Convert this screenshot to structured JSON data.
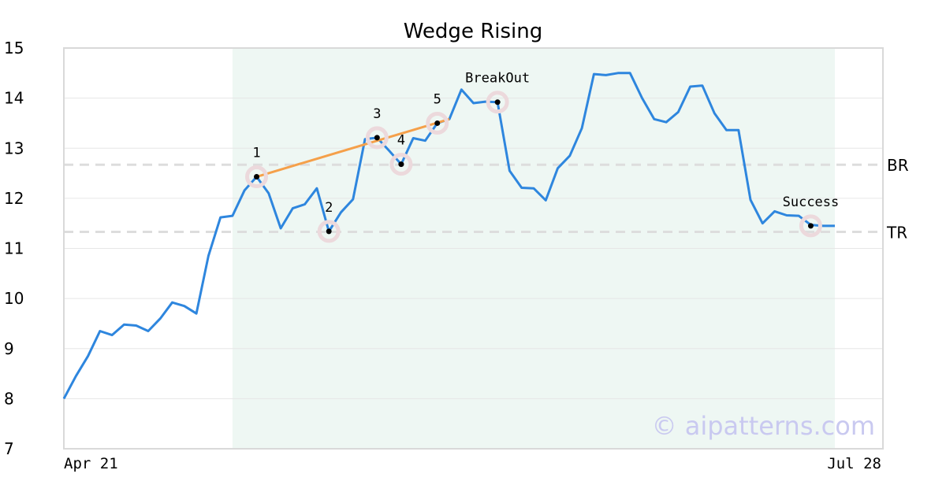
{
  "chart_data": {
    "type": "line",
    "title": "Wedge Rising",
    "xlabel": "",
    "ylabel": "",
    "ylim": [
      7,
      15
    ],
    "yticks": [
      "7",
      "8",
      "9",
      "10",
      "11",
      "12",
      "13",
      "14",
      "15"
    ],
    "x_tick_labels": [
      "Apr 21",
      "Jul 28"
    ],
    "grid": "horizontal",
    "pattern_region": {
      "start_index": 14,
      "end_index": 64
    },
    "series": [
      {
        "values": [
          8.0,
          8.45,
          8.85,
          9.35,
          9.27,
          9.48,
          9.46,
          9.35,
          9.6,
          9.92,
          9.85,
          9.7,
          10.85,
          11.62,
          11.65,
          12.16,
          12.43,
          12.1,
          11.4,
          11.8,
          11.88,
          12.2,
          11.34,
          11.72,
          11.98,
          13.18,
          13.21,
          12.95,
          12.68,
          13.2,
          13.15,
          13.5,
          13.58,
          14.17,
          13.9,
          13.93,
          13.92,
          12.55,
          12.21,
          12.2,
          11.96,
          12.6,
          12.85,
          13.4,
          14.48,
          14.46,
          14.5,
          14.5,
          14.0,
          13.58,
          13.52,
          13.72,
          14.23,
          14.25,
          13.7,
          13.36,
          13.36,
          11.97,
          11.5,
          11.74,
          11.66,
          11.65,
          11.47,
          11.45,
          11.45
        ]
      }
    ],
    "trendline": {
      "start_index": 16,
      "start_value": 12.43,
      "end_index": 32,
      "end_value": 13.58
    },
    "levels": [
      {
        "label": "BR",
        "value": 12.67
      },
      {
        "label": "TR",
        "value": 11.33
      }
    ],
    "annotations": [
      {
        "label": "1",
        "index": 16,
        "value": 12.43
      },
      {
        "label": "2",
        "index": 22,
        "value": 11.34
      },
      {
        "label": "3",
        "index": 26,
        "value": 13.21
      },
      {
        "label": "4",
        "index": 28,
        "value": 12.68
      },
      {
        "label": "5",
        "index": 31,
        "value": 13.5
      },
      {
        "label": "BreakOut",
        "index": 36,
        "value": 13.92
      },
      {
        "label": "Success",
        "index": 62,
        "value": 11.45
      }
    ],
    "colors": {
      "line": "#2e86de",
      "trendline": "#f5a04a",
      "region": "#eef7f3",
      "level": "#dddddd",
      "marker_halo": "#ecd9dc",
      "marker_dot": "#000000",
      "watermark": "#c9c9f0"
    }
  },
  "watermark": "© aipatterns.com"
}
